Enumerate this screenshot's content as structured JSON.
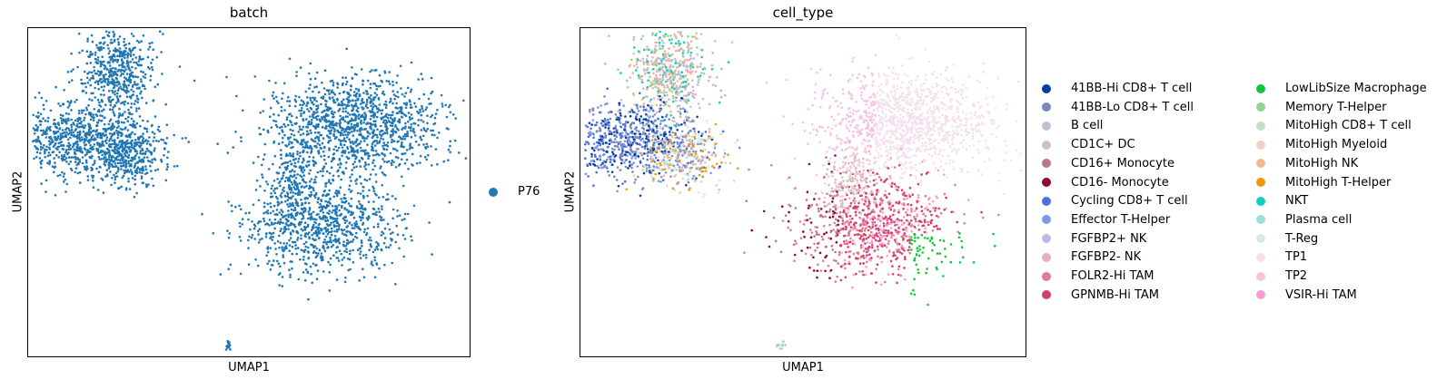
{
  "chart_data": [
    {
      "type": "scatter",
      "title": "batch",
      "xlabel": "UMAP1",
      "ylabel": "UMAP2",
      "grid": false,
      "legend_position": "right",
      "series": [
        {
          "name": "P76",
          "color": "#1f77b4"
        }
      ]
    },
    {
      "type": "scatter",
      "title": "cell_type",
      "xlabel": "UMAP1",
      "ylabel": "UMAP2",
      "grid": false,
      "legend_position": "right",
      "legend_columns": 2,
      "series": [
        {
          "name": "41BB-Hi CD8+ T cell",
          "color": "#023fa5"
        },
        {
          "name": "41BB-Lo CD8+ T cell",
          "color": "#7d87b9"
        },
        {
          "name": "B cell",
          "color": "#bec1d4"
        },
        {
          "name": "CD1C+ DC",
          "color": "#d6bcc0"
        },
        {
          "name": "CD16+ Monocyte",
          "color": "#bb7784"
        },
        {
          "name": "CD16- Monocyte",
          "color": "#8e063b"
        },
        {
          "name": "Cycling CD8+ T cell",
          "color": "#4a6fe3"
        },
        {
          "name": "Effector T-Helper",
          "color": "#8595e1"
        },
        {
          "name": "FGFBP2+ NK",
          "color": "#b5bbe3"
        },
        {
          "name": "FGFBP2- NK",
          "color": "#e6afb9"
        },
        {
          "name": "FOLR2-Hi TAM",
          "color": "#e07b91"
        },
        {
          "name": "GPNMB-Hi TAM",
          "color": "#d33f6a"
        },
        {
          "name": "LowLibSize Macrophage",
          "color": "#11c638"
        },
        {
          "name": "Memory T-Helper",
          "color": "#8dd593"
        },
        {
          "name": "MitoHigh CD8+ T cell",
          "color": "#c6dec7"
        },
        {
          "name": "MitoHigh Myeloid",
          "color": "#ead3c6"
        },
        {
          "name": "MitoHigh NK",
          "color": "#f0b98d"
        },
        {
          "name": "MitoHigh T-Helper",
          "color": "#ef9708"
        },
        {
          "name": "NKT",
          "color": "#0fcfc0"
        },
        {
          "name": "Plasma cell",
          "color": "#9cded6"
        },
        {
          "name": "T-Reg",
          "color": "#d5eae7"
        },
        {
          "name": "TP1",
          "color": "#f3e1eb"
        },
        {
          "name": "TP2",
          "color": "#f6c4e1"
        },
        {
          "name": "VSIR-Hi TAM",
          "color": "#f79cd4"
        }
      ]
    }
  ]
}
